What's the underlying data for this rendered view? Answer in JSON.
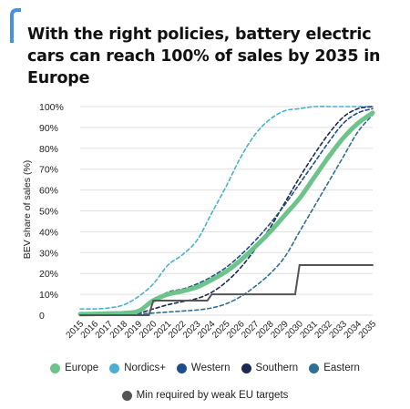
{
  "title": "With the right policies, battery electric cars can reach 100% of sales by 2035 in Europe",
  "colors": {
    "accent": "#4a90e2",
    "europe": "#6cc48a",
    "nordics": "#4ab0d2",
    "western": "#1f4e8c",
    "southern": "#1a2a55",
    "eastern": "#2e7095",
    "weak_eu": "#555555",
    "grid": "#e0e0e0"
  },
  "chart_data": {
    "type": "line",
    "title": "With the right policies, battery electric cars can reach 100% of sales by 2035 in Europe",
    "ylabel": "BEV share of sales (%)",
    "xlabel": "",
    "ylim": [
      0,
      100
    ],
    "xlim": [
      2015,
      2035
    ],
    "grid": true,
    "legend_position": "bottom",
    "y_ticks": [
      "0",
      "10%",
      "20%",
      "30%",
      "40%",
      "50%",
      "60%",
      "70%",
      "80%",
      "90%",
      "100%"
    ],
    "x": [
      2015,
      2016,
      2017,
      2018,
      2019,
      2020,
      2021,
      2022,
      2023,
      2024,
      2025,
      2026,
      2027,
      2028,
      2029,
      2030,
      2031,
      2032,
      2033,
      2034,
      2035
    ],
    "x_labels": [
      "2015",
      "2016",
      "2017",
      "2018",
      "2019",
      "2020",
      "2021",
      "2022",
      "2023",
      "2024",
      "2025",
      "2026",
      "2027",
      "2028",
      "2029",
      "2030",
      "2031",
      "2032",
      "2033",
      "2034",
      "2035"
    ],
    "series": [
      {
        "name": "Europe",
        "style": "solid-thick",
        "color": "#6cc48a",
        "values": [
          0.5,
          0.6,
          0.8,
          1.0,
          2.0,
          7.0,
          10.0,
          11.5,
          13.5,
          17.0,
          21.0,
          26.5,
          33.0,
          40.0,
          48.0,
          56.0,
          66.0,
          76.0,
          85.0,
          92.0,
          97.0
        ]
      },
      {
        "name": "Nordics+",
        "style": "dashed",
        "color": "#4ab0d2",
        "values": [
          3.0,
          3.0,
          3.5,
          5.0,
          9.0,
          15.0,
          24.0,
          29.0,
          36.0,
          49.0,
          62.0,
          76.0,
          87.0,
          94.0,
          98.0,
          99.0,
          100.0,
          100.0,
          100.0,
          100.0,
          100.0
        ]
      },
      {
        "name": "Western",
        "style": "dashed",
        "color": "#1f4e8c",
        "values": [
          0.5,
          0.6,
          0.8,
          1.0,
          2.0,
          7.0,
          11.0,
          12.5,
          15.0,
          18.5,
          23.0,
          29.0,
          36.0,
          44.0,
          53.0,
          63.0,
          73.0,
          83.0,
          92.0,
          97.0,
          99.0
        ]
      },
      {
        "name": "Southern",
        "style": "dashed",
        "color": "#1a2a55",
        "values": [
          0.3,
          0.4,
          0.5,
          0.6,
          1.0,
          3.0,
          5.0,
          6.5,
          8.0,
          11.0,
          16.0,
          23.0,
          32.0,
          42.0,
          54.0,
          66.0,
          77.0,
          87.0,
          95.0,
          99.0,
          100.0
        ]
      },
      {
        "name": "Eastern",
        "style": "dashed",
        "color": "#2e7095",
        "values": [
          0.2,
          0.2,
          0.3,
          0.4,
          0.6,
          1.0,
          1.5,
          2.0,
          2.5,
          3.5,
          5.5,
          9.0,
          14.0,
          20.0,
          28.0,
          40.0,
          52.0,
          64.0,
          76.0,
          88.0,
          96.0
        ]
      },
      {
        "name": "Min required by weak EU targets",
        "style": "solid",
        "color": "#555555",
        "values": [
          0,
          0,
          0,
          0,
          0,
          7.0,
          7.0,
          7.0,
          7.0,
          10.0,
          10.0,
          10.0,
          10.0,
          10.0,
          10.0,
          24.0,
          24.0,
          24.0,
          24.0,
          24.0,
          24.0
        ]
      }
    ]
  }
}
